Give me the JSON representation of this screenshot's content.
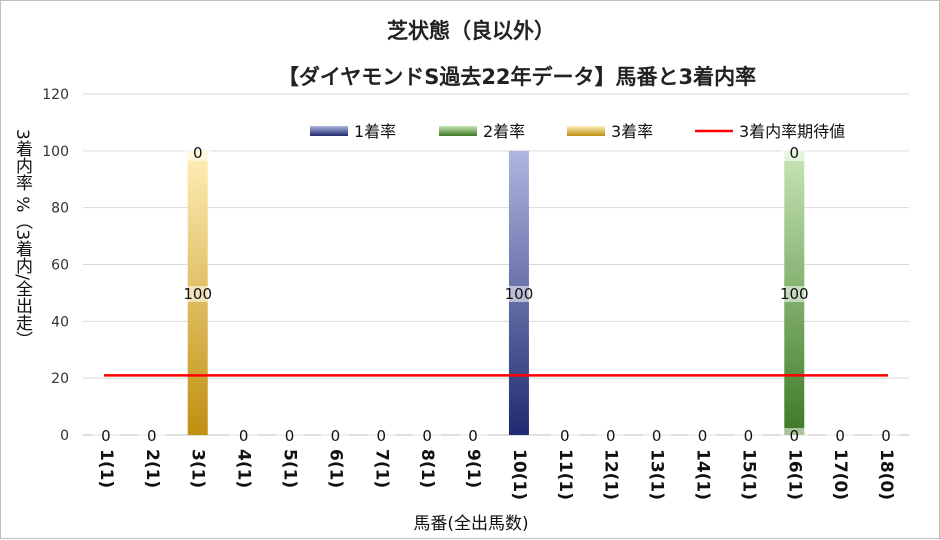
{
  "chart_data": {
    "type": "bar",
    "title": "芝状態（良以外）",
    "subtitle": "【ダイヤモンドS過去22年データ】馬番と3着内率",
    "xlabel": "馬番(全出馬数)",
    "ylabel": "3着内率 %（3着内/全出走）",
    "ylim": [
      0,
      120
    ],
    "yticks": [
      0,
      20,
      40,
      60,
      80,
      100,
      120
    ],
    "categories": [
      "1(1)",
      "2(1)",
      "3(1)",
      "4(1)",
      "5(1)",
      "6(1)",
      "7(1)",
      "8(1)",
      "9(1)",
      "10(1)",
      "11(1)",
      "12(1)",
      "13(1)",
      "14(1)",
      "15(1)",
      "16(1)",
      "17(0)",
      "18(0)"
    ],
    "series": [
      {
        "name": "1着率",
        "values": [
          0,
          0,
          0,
          0,
          0,
          0,
          0,
          0,
          0,
          100,
          0,
          0,
          0,
          0,
          0,
          0,
          0,
          0
        ]
      },
      {
        "name": "2着率",
        "values": [
          0,
          0,
          0,
          0,
          0,
          0,
          0,
          0,
          0,
          0,
          0,
          0,
          0,
          0,
          0,
          100,
          0,
          0
        ]
      },
      {
        "name": "3着率",
        "values": [
          0,
          0,
          100,
          0,
          0,
          0,
          0,
          0,
          0,
          0,
          0,
          0,
          0,
          0,
          0,
          0,
          0,
          0
        ]
      }
    ],
    "line": {
      "name": "3着内率期待値",
      "value": 21
    },
    "data_labels": [
      {
        "category": "1(1)",
        "label": "0"
      },
      {
        "category": "2(1)",
        "label": "0"
      },
      {
        "category": "3(1)",
        "label": "100"
      },
      {
        "category": "3(1)",
        "label": "0"
      },
      {
        "category": "4(1)",
        "label": "0"
      },
      {
        "category": "5(1)",
        "label": "0"
      },
      {
        "category": "6(1)",
        "label": "0"
      },
      {
        "category": "7(1)",
        "label": "0"
      },
      {
        "category": "8(1)",
        "label": "0"
      },
      {
        "category": "9(1)",
        "label": "0"
      },
      {
        "category": "10(1)",
        "label": "100"
      },
      {
        "category": "11(1)",
        "label": "0"
      },
      {
        "category": "12(1)",
        "label": "0"
      },
      {
        "category": "13(1)",
        "label": "0"
      },
      {
        "category": "14(1)",
        "label": "0"
      },
      {
        "category": "15(1)",
        "label": "0"
      },
      {
        "category": "16(1)",
        "label": "100"
      },
      {
        "category": "16(1)",
        "label": "0"
      },
      {
        "category": "16(1)",
        "label": "0"
      },
      {
        "category": "17(0)",
        "label": "0"
      },
      {
        "category": "18(0)",
        "label": "0"
      }
    ],
    "grid": true,
    "legend": "top",
    "colors": {
      "1着率": "#2e3a87",
      "2着率": "#4a8a2f",
      "3着率": "#c8960c",
      "3着内率期待値": "#ff0000"
    }
  }
}
